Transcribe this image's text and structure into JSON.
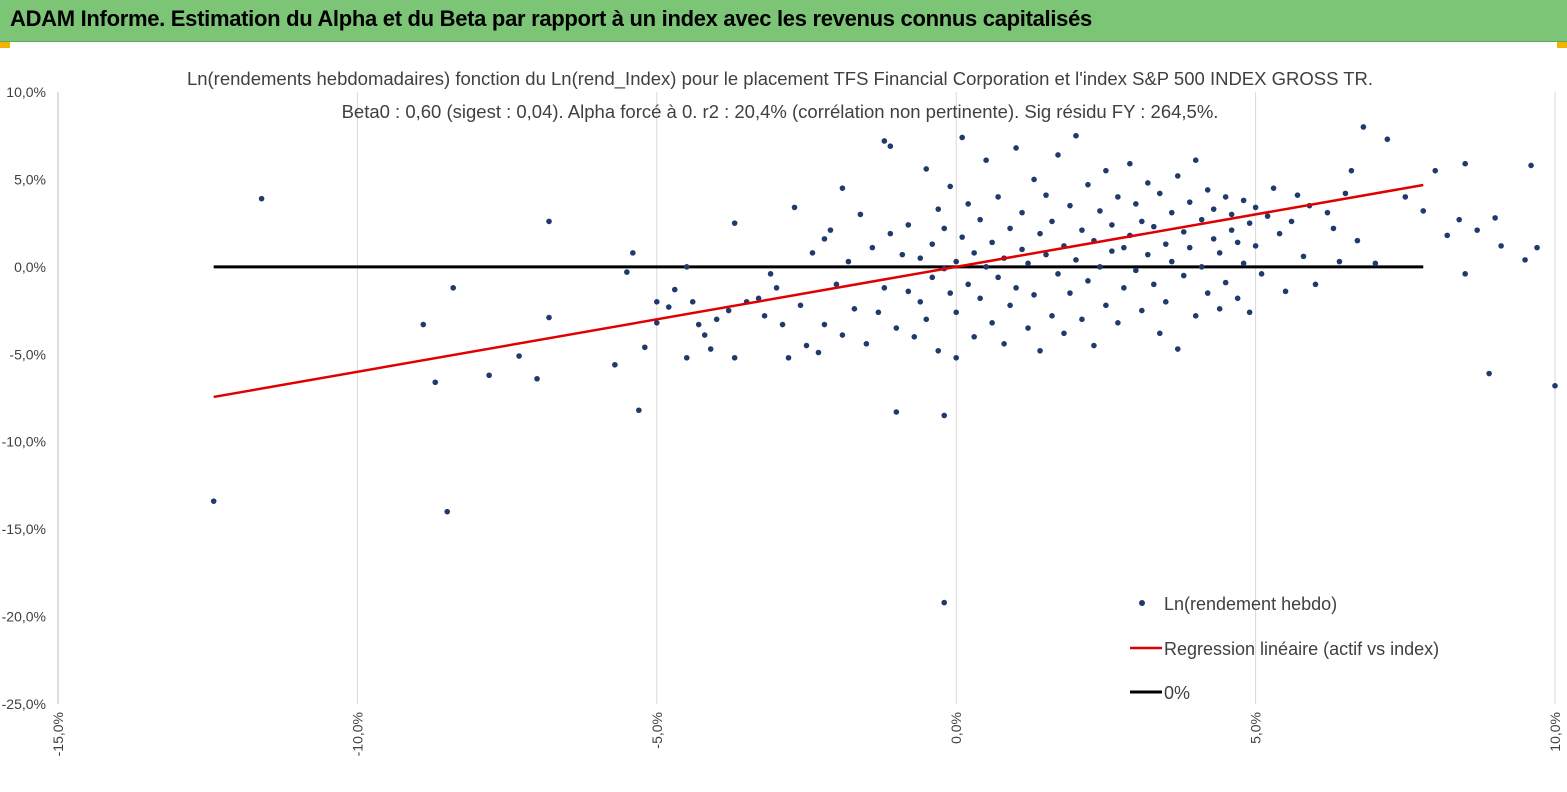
{
  "banner": {
    "title": "ADAM Informe. Estimation du Alpha et du Beta par rapport à un index avec les revenus connus capitalisés"
  },
  "colors": {
    "banner": "#7cc576",
    "points": "#1f3a6b",
    "regression": "#e00000",
    "zero_line": "#000000",
    "grid": "#d9d9d9"
  },
  "chart_data": {
    "type": "scatter",
    "title_line1": "Ln(rendements hebdomadaires) fonction du Ln(rend_Index) pour le placement TFS Financial Corporation et l'index S&P 500 INDEX GROSS TR.",
    "title_line2": "Beta0 : 0,60 (sigest : 0,04). Alpha forcé à 0. r2 : 20,4% (corrélation non pertinente). Sig résidu FY : 264,5%.",
    "xlim": [
      -0.15,
      0.1
    ],
    "ylim": [
      -0.25,
      0.1
    ],
    "x_ticks": [
      -0.15,
      -0.1,
      -0.05,
      0.0,
      0.05,
      0.1
    ],
    "x_tick_labels": [
      "-15,0%",
      "-10,0%",
      "-5,0%",
      "0,0%",
      "5,0%",
      "10,0%"
    ],
    "y_ticks": [
      0.1,
      0.05,
      0.0,
      -0.05,
      -0.1,
      -0.15,
      -0.2,
      -0.25
    ],
    "y_tick_labels": [
      "10,0%",
      "5,0%",
      "0,0%",
      "-5,0%",
      "-10,0%",
      "-15,0%",
      "-20,0%",
      "-25,0%"
    ],
    "grid": "vertical",
    "legend_position": "bottom-right",
    "series": [
      {
        "name": "Ln(rendement hebdo)",
        "kind": "scatter",
        "points": [
          [
            -0.124,
            -0.134
          ],
          [
            -0.116,
            0.039
          ],
          [
            -0.089,
            -0.033
          ],
          [
            -0.087,
            -0.066
          ],
          [
            -0.085,
            -0.14
          ],
          [
            -0.084,
            -0.012
          ],
          [
            -0.078,
            -0.062
          ],
          [
            -0.073,
            -0.051
          ],
          [
            -0.07,
            -0.064
          ],
          [
            -0.068,
            0.026
          ],
          [
            -0.068,
            -0.029
          ],
          [
            -0.057,
            -0.056
          ],
          [
            -0.055,
            -0.003
          ],
          [
            -0.054,
            0.008
          ],
          [
            -0.053,
            -0.082
          ],
          [
            -0.052,
            -0.046
          ],
          [
            -0.05,
            -0.02
          ],
          [
            -0.05,
            -0.032
          ],
          [
            -0.048,
            -0.023
          ],
          [
            -0.047,
            -0.013
          ],
          [
            -0.045,
            -0.052
          ],
          [
            -0.045,
            0.0
          ],
          [
            -0.044,
            -0.02
          ],
          [
            -0.043,
            -0.033
          ],
          [
            -0.042,
            -0.039
          ],
          [
            -0.041,
            -0.047
          ],
          [
            -0.04,
            -0.03
          ],
          [
            -0.038,
            -0.025
          ],
          [
            -0.037,
            -0.052
          ],
          [
            -0.037,
            0.025
          ],
          [
            -0.035,
            -0.02
          ],
          [
            -0.033,
            -0.018
          ],
          [
            -0.032,
            -0.028
          ],
          [
            -0.031,
            -0.004
          ],
          [
            -0.03,
            -0.012
          ],
          [
            -0.029,
            -0.033
          ],
          [
            -0.028,
            -0.052
          ],
          [
            -0.027,
            0.034
          ],
          [
            -0.026,
            -0.022
          ],
          [
            -0.025,
            -0.045
          ],
          [
            -0.024,
            0.008
          ],
          [
            -0.023,
            -0.049
          ],
          [
            -0.022,
            0.016
          ],
          [
            -0.022,
            -0.033
          ],
          [
            -0.021,
            0.021
          ],
          [
            -0.02,
            -0.01
          ],
          [
            -0.019,
            0.045
          ],
          [
            -0.019,
            -0.039
          ],
          [
            -0.018,
            0.003
          ],
          [
            -0.017,
            -0.024
          ],
          [
            -0.016,
            0.03
          ],
          [
            -0.015,
            -0.044
          ],
          [
            -0.014,
            0.011
          ],
          [
            -0.013,
            -0.026
          ],
          [
            -0.012,
            0.072
          ],
          [
            -0.012,
            -0.012
          ],
          [
            -0.011,
            0.019
          ],
          [
            -0.011,
            0.069
          ],
          [
            -0.01,
            -0.083
          ],
          [
            -0.01,
            -0.035
          ],
          [
            -0.009,
            0.007
          ],
          [
            -0.008,
            -0.014
          ],
          [
            -0.008,
            0.024
          ],
          [
            -0.007,
            -0.04
          ],
          [
            -0.006,
            0.005
          ],
          [
            -0.006,
            -0.02
          ],
          [
            -0.005,
            0.056
          ],
          [
            -0.005,
            -0.03
          ],
          [
            -0.004,
            0.013
          ],
          [
            -0.004,
            -0.006
          ],
          [
            -0.003,
            0.033
          ],
          [
            -0.003,
            -0.048
          ],
          [
            -0.002,
            -0.001
          ],
          [
            -0.002,
            0.022
          ],
          [
            -0.001,
            -0.015
          ],
          [
            -0.001,
            0.046
          ],
          [
            -0.0,
            -0.052
          ],
          [
            0.0,
            0.003
          ],
          [
            0.0,
            -0.026
          ],
          [
            0.001,
            0.017
          ],
          [
            -0.002,
            -0.192
          ],
          [
            -0.002,
            -0.085
          ],
          [
            0.001,
            0.074
          ],
          [
            0.002,
            -0.01
          ],
          [
            0.002,
            0.036
          ],
          [
            0.003,
            -0.04
          ],
          [
            0.003,
            0.008
          ],
          [
            0.004,
            -0.018
          ],
          [
            0.004,
            0.027
          ],
          [
            0.005,
            0.0
          ],
          [
            0.005,
            0.061
          ],
          [
            0.006,
            -0.032
          ],
          [
            0.006,
            0.014
          ],
          [
            0.007,
            -0.006
          ],
          [
            0.007,
            0.04
          ],
          [
            0.008,
            -0.044
          ],
          [
            0.008,
            0.005
          ],
          [
            0.009,
            0.022
          ],
          [
            0.009,
            -0.022
          ],
          [
            0.01,
            0.068
          ],
          [
            0.01,
            -0.012
          ],
          [
            0.011,
            0.01
          ],
          [
            0.011,
            0.031
          ],
          [
            0.012,
            -0.035
          ],
          [
            0.012,
            0.002
          ],
          [
            0.013,
            0.05
          ],
          [
            0.013,
            -0.016
          ],
          [
            0.014,
            0.019
          ],
          [
            0.014,
            -0.048
          ],
          [
            0.015,
            0.007
          ],
          [
            0.015,
            0.041
          ],
          [
            0.016,
            -0.028
          ],
          [
            0.016,
            0.026
          ],
          [
            0.017,
            -0.004
          ],
          [
            0.017,
            0.064
          ],
          [
            0.018,
            -0.038
          ],
          [
            0.018,
            0.012
          ],
          [
            0.019,
            0.035
          ],
          [
            0.019,
            -0.015
          ],
          [
            0.02,
            0.075
          ],
          [
            0.02,
            0.004
          ],
          [
            0.021,
            -0.03
          ],
          [
            0.021,
            0.021
          ],
          [
            0.022,
            0.047
          ],
          [
            0.022,
            -0.008
          ],
          [
            0.023,
            0.015
          ],
          [
            0.023,
            -0.045
          ],
          [
            0.024,
            0.032
          ],
          [
            0.024,
            0.0
          ],
          [
            0.025,
            0.055
          ],
          [
            0.025,
            -0.022
          ],
          [
            0.026,
            0.024
          ],
          [
            0.026,
            0.009
          ],
          [
            0.027,
            -0.032
          ],
          [
            0.027,
            0.04
          ],
          [
            0.028,
            0.011
          ],
          [
            0.028,
            -0.012
          ],
          [
            0.029,
            0.059
          ],
          [
            0.029,
            0.018
          ],
          [
            0.03,
            -0.002
          ],
          [
            0.03,
            0.036
          ],
          [
            0.031,
            -0.025
          ],
          [
            0.031,
            0.026
          ],
          [
            0.032,
            0.007
          ],
          [
            0.032,
            0.048
          ],
          [
            0.033,
            -0.01
          ],
          [
            0.033,
            0.023
          ],
          [
            0.034,
            -0.038
          ],
          [
            0.034,
            0.042
          ],
          [
            0.035,
            0.013
          ],
          [
            0.035,
            -0.02
          ],
          [
            0.036,
            0.031
          ],
          [
            0.036,
            0.003
          ],
          [
            0.037,
            0.052
          ],
          [
            0.037,
            -0.047
          ],
          [
            0.038,
            0.02
          ],
          [
            0.038,
            -0.005
          ],
          [
            0.039,
            0.037
          ],
          [
            0.039,
            0.011
          ],
          [
            0.04,
            0.061
          ],
          [
            0.04,
            -0.028
          ],
          [
            0.041,
            0.027
          ],
          [
            0.041,
            0.0
          ],
          [
            0.042,
            0.044
          ],
          [
            0.042,
            -0.015
          ],
          [
            0.043,
            0.016
          ],
          [
            0.043,
            0.033
          ],
          [
            0.044,
            -0.024
          ],
          [
            0.044,
            0.008
          ],
          [
            0.045,
            0.04
          ],
          [
            0.045,
            -0.009
          ],
          [
            0.046,
            0.021
          ],
          [
            0.046,
            0.03
          ],
          [
            0.047,
            -0.018
          ],
          [
            0.047,
            0.014
          ],
          [
            0.048,
            0.038
          ],
          [
            0.048,
            0.002
          ],
          [
            0.049,
            0.025
          ],
          [
            0.049,
            -0.026
          ],
          [
            0.05,
            0.034
          ],
          [
            0.05,
            0.012
          ],
          [
            0.051,
            -0.004
          ],
          [
            0.052,
            0.029
          ],
          [
            0.053,
            0.045
          ],
          [
            0.054,
            0.019
          ],
          [
            0.055,
            -0.014
          ],
          [
            0.056,
            0.026
          ],
          [
            0.057,
            0.041
          ],
          [
            0.058,
            0.006
          ],
          [
            0.059,
            0.035
          ],
          [
            0.06,
            -0.01
          ],
          [
            0.062,
            0.031
          ],
          [
            0.063,
            0.022
          ],
          [
            0.064,
            0.003
          ],
          [
            0.065,
            0.042
          ],
          [
            0.066,
            0.055
          ],
          [
            0.068,
            0.08
          ],
          [
            0.072,
            0.073
          ],
          [
            0.075,
            0.04
          ],
          [
            0.078,
            0.032
          ],
          [
            0.08,
            0.055
          ],
          [
            0.082,
            0.018
          ],
          [
            0.084,
            0.027
          ],
          [
            0.085,
            0.059
          ],
          [
            0.087,
            0.021
          ],
          [
            0.089,
            -0.061
          ],
          [
            0.091,
            0.012
          ],
          [
            0.095,
            0.004
          ],
          [
            0.096,
            0.058
          ],
          [
            0.097,
            0.011
          ],
          [
            0.1,
            -0.068
          ],
          [
            0.09,
            0.028
          ],
          [
            0.085,
            -0.004
          ],
          [
            0.07,
            0.002
          ],
          [
            0.067,
            0.015
          ]
        ]
      },
      {
        "name": "Regression linéaire (actif vs index)",
        "kind": "line",
        "points": [
          [
            -0.124,
            -0.0744
          ],
          [
            0.078,
            0.0468
          ]
        ]
      },
      {
        "name": "0%",
        "kind": "line",
        "points": [
          [
            -0.124,
            0.0
          ],
          [
            0.078,
            0.0
          ]
        ]
      }
    ]
  }
}
